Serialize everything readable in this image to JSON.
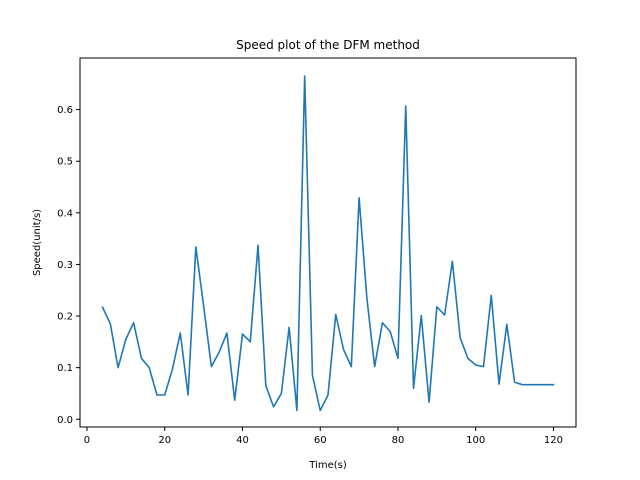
{
  "chart_data": {
    "type": "line",
    "title": "Speed plot of the DFM method",
    "xlabel": "Time(s)",
    "ylabel": "Speed(unit/s)",
    "xlim": [
      -1.8,
      125.8
    ],
    "ylim": [
      -0.015,
      0.7
    ],
    "xticks": [
      0,
      20,
      40,
      60,
      80,
      100,
      120
    ],
    "xtick_labels": [
      "0",
      "20",
      "40",
      "60",
      "80",
      "100",
      "120"
    ],
    "yticks": [
      0.0,
      0.1,
      0.2,
      0.3,
      0.4,
      0.5,
      0.6
    ],
    "ytick_labels": [
      "0.0",
      "0.1",
      "0.2",
      "0.3",
      "0.4",
      "0.5",
      "0.6"
    ],
    "grid": false,
    "series": [
      {
        "color": "#1f77b4",
        "x": [
          4,
          6,
          8,
          10,
          12,
          14,
          16,
          18,
          20,
          22,
          24,
          26,
          28,
          30,
          32,
          34,
          36,
          38,
          40,
          42,
          44,
          46,
          48,
          50,
          52,
          54,
          56,
          58,
          60,
          62,
          64,
          66,
          68,
          70,
          72,
          74,
          76,
          78,
          80,
          82,
          84,
          86,
          88,
          90,
          92,
          94,
          96,
          98,
          100,
          102,
          104,
          106,
          108,
          110,
          112,
          114,
          116,
          118,
          120
        ],
        "y": [
          0.217,
          0.185,
          0.1,
          0.155,
          0.187,
          0.118,
          0.1,
          0.047,
          0.047,
          0.098,
          0.167,
          0.047,
          0.334,
          0.22,
          0.102,
          0.13,
          0.167,
          0.037,
          0.165,
          0.15,
          0.337,
          0.065,
          0.024,
          0.05,
          0.178,
          0.017,
          0.665,
          0.085,
          0.017,
          0.047,
          0.203,
          0.135,
          0.102,
          0.429,
          0.235,
          0.102,
          0.187,
          0.17,
          0.118,
          0.607,
          0.06,
          0.201,
          0.033,
          0.218,
          0.202,
          0.306,
          0.158,
          0.118,
          0.105,
          0.102,
          0.24,
          0.068,
          0.184,
          0.072,
          0.067,
          0.067,
          0.067,
          0.067,
          0.067
        ]
      }
    ]
  }
}
